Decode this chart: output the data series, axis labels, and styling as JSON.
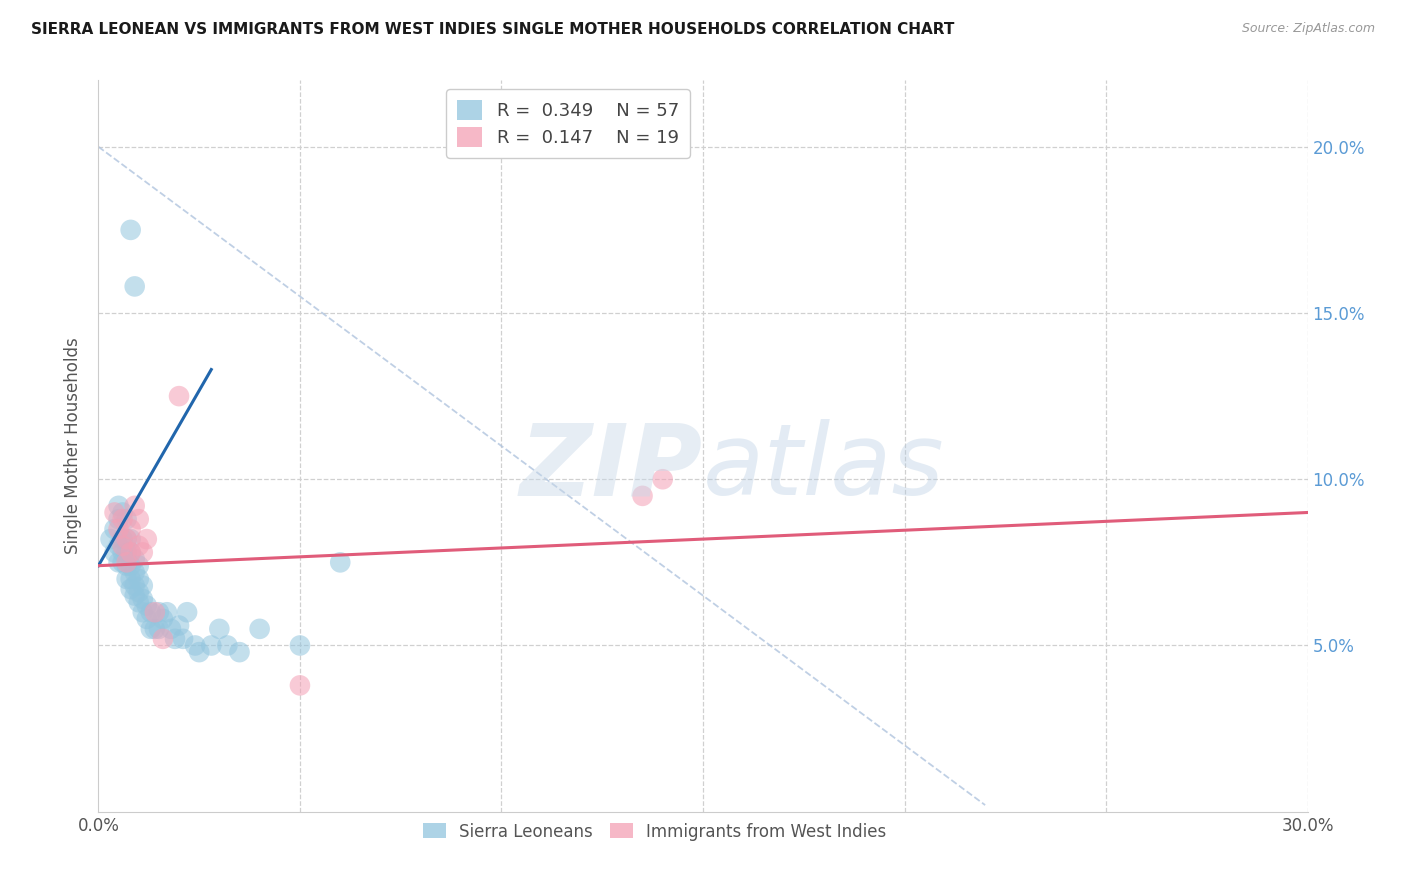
{
  "title": "SIERRA LEONEAN VS IMMIGRANTS FROM WEST INDIES SINGLE MOTHER HOUSEHOLDS CORRELATION CHART",
  "source": "Source: ZipAtlas.com",
  "ylabel": "Single Mother Households",
  "xlim": [
    0.0,
    0.3
  ],
  "ylim": [
    0.0,
    0.22
  ],
  "legend_r1": "0.349",
  "legend_n1": "57",
  "legend_r2": "0.147",
  "legend_n2": "19",
  "watermark_zip": "ZIP",
  "watermark_atlas": "atlas",
  "blue_color": "#92c5de",
  "pink_color": "#f4a0b5",
  "blue_line_color": "#2166ac",
  "pink_line_color": "#e05c7a",
  "dashed_line_color": "#b0c4de",
  "background_color": "#ffffff",
  "grid_color": "#d0d0d0",
  "right_axis_color": "#5b9bd5",
  "sierra_x": [
    0.003,
    0.004,
    0.004,
    0.005,
    0.005,
    0.005,
    0.005,
    0.006,
    0.006,
    0.006,
    0.006,
    0.007,
    0.007,
    0.007,
    0.007,
    0.007,
    0.008,
    0.008,
    0.008,
    0.008,
    0.008,
    0.009,
    0.009,
    0.009,
    0.009,
    0.01,
    0.01,
    0.01,
    0.01,
    0.011,
    0.011,
    0.011,
    0.012,
    0.012,
    0.013,
    0.013,
    0.014,
    0.015,
    0.015,
    0.016,
    0.017,
    0.018,
    0.019,
    0.02,
    0.021,
    0.022,
    0.024,
    0.025,
    0.028,
    0.03,
    0.032,
    0.035,
    0.04,
    0.05,
    0.06,
    0.008,
    0.009
  ],
  "sierra_y": [
    0.082,
    0.078,
    0.085,
    0.075,
    0.08,
    0.088,
    0.092,
    0.075,
    0.078,
    0.082,
    0.09,
    0.07,
    0.074,
    0.078,
    0.082,
    0.088,
    0.067,
    0.07,
    0.074,
    0.078,
    0.082,
    0.065,
    0.068,
    0.072,
    0.076,
    0.063,
    0.066,
    0.07,
    0.074,
    0.06,
    0.064,
    0.068,
    0.058,
    0.062,
    0.055,
    0.06,
    0.055,
    0.055,
    0.06,
    0.058,
    0.06,
    0.055,
    0.052,
    0.056,
    0.052,
    0.06,
    0.05,
    0.048,
    0.05,
    0.055,
    0.05,
    0.048,
    0.055,
    0.05,
    0.075,
    0.175,
    0.158
  ],
  "westindies_x": [
    0.004,
    0.005,
    0.006,
    0.006,
    0.007,
    0.007,
    0.008,
    0.008,
    0.009,
    0.01,
    0.01,
    0.011,
    0.012,
    0.014,
    0.016,
    0.02,
    0.135,
    0.14,
    0.05
  ],
  "westindies_y": [
    0.09,
    0.085,
    0.08,
    0.088,
    0.075,
    0.082,
    0.078,
    0.085,
    0.092,
    0.08,
    0.088,
    0.078,
    0.082,
    0.06,
    0.052,
    0.125,
    0.095,
    0.1,
    0.038
  ],
  "blue_line_x": [
    0.003,
    0.03
  ],
  "blue_line_y": [
    0.074,
    0.132
  ],
  "pink_line_x": [
    0.0,
    0.3
  ],
  "pink_line_y": [
    0.074,
    0.09
  ],
  "diag_line_x": [
    0.03,
    0.22
  ],
  "diag_line_y": [
    0.195,
    0.02
  ]
}
